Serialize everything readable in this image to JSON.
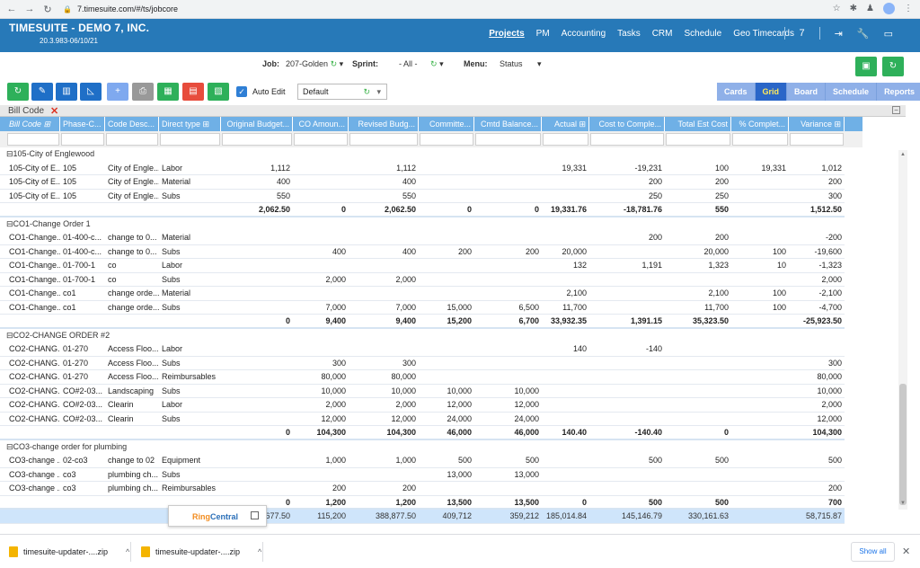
{
  "browser": {
    "url": "7.timesuite.com/#/ts/jobcore"
  },
  "app": {
    "title": "TIMESUITE - DEMO 7, INC.",
    "version": "20.3.983-06/10/21",
    "nav": [
      "Projects",
      "PM",
      "Accounting",
      "Tasks",
      "CRM",
      "Schedule",
      "Geo Timecards"
    ],
    "active_nav": "Projects",
    "badge": "7"
  },
  "filters": {
    "job_label": "Job:",
    "job_value": "207-Golden",
    "sprint_label": "Sprint:",
    "sprint_value": "- All -",
    "menu_label": "Menu:",
    "menu_value": "Status"
  },
  "toolbar": {
    "auto_edit_label": "Auto Edit",
    "layout_value": "Default",
    "view_tabs": [
      "Cards",
      "Grid",
      "Board",
      "Schedule",
      "Reports"
    ],
    "active_view": "Grid"
  },
  "grid": {
    "group_by_label": "Bill Code",
    "columns": [
      "Bill Code",
      "Phase-C...",
      "Code Desc...",
      "Direct type",
      "Original Budget...",
      "CO Amoun...",
      "Revised Budg...",
      "Committe...",
      "Cmtd Balance...",
      "Actual",
      "Cost to Comple...",
      "Total Est Cost",
      "% Complet...",
      "Variance"
    ],
    "groups": [
      {
        "title": "105-City of Englewood",
        "rows": [
          [
            "105-City of E...",
            "105",
            "City of Engle...",
            "Labor",
            "1,112",
            "",
            "1,112",
            "",
            "",
            "19,331",
            "-19,231",
            "100",
            "19,331",
            "1,012"
          ],
          [
            "105-City of E...",
            "105",
            "City of Engle...",
            "Material",
            "400",
            "",
            "400",
            "",
            "",
            "",
            "200",
            "200",
            "",
            "200"
          ],
          [
            "105-City of E...",
            "105",
            "City of Engle...",
            "Subs",
            "550",
            "",
            "550",
            "",
            "",
            "",
            "250",
            "250",
            "",
            "300"
          ]
        ],
        "subtotal": [
          "",
          "",
          "",
          "",
          "2,062.50",
          "0",
          "2,062.50",
          "0",
          "0",
          "19,331.76",
          "-18,781.76",
          "550",
          "",
          "1,512.50"
        ]
      },
      {
        "title": "CO1-Change Order 1",
        "rows": [
          [
            "CO1-Change...",
            "01-400-c...",
            "change to 0...",
            "Material",
            "",
            "",
            "",
            "",
            "",
            "",
            "200",
            "200",
            "",
            "-200"
          ],
          [
            "CO1-Change...",
            "01-400-c...",
            "change to 0...",
            "Subs",
            "",
            "400",
            "400",
            "200",
            "200",
            "20,000",
            "",
            "20,000",
            "100",
            "-19,600"
          ],
          [
            "CO1-Change...",
            "01-700-1",
            "co",
            "Labor",
            "",
            "",
            "",
            "",
            "",
            "132",
            "1,191",
            "1,323",
            "10",
            "-1,323"
          ],
          [
            "CO1-Change...",
            "01-700-1",
            "co",
            "Subs",
            "",
            "2,000",
            "2,000",
            "",
            "",
            "",
            "",
            "",
            "",
            "2,000"
          ],
          [
            "CO1-Change...",
            "co1",
            "change orde...",
            "Material",
            "",
            "",
            "",
            "",
            "",
            "2,100",
            "",
            "2,100",
            "100",
            "-2,100"
          ],
          [
            "CO1-Change...",
            "co1",
            "change orde...",
            "Subs",
            "",
            "7,000",
            "7,000",
            "15,000",
            "6,500",
            "11,700",
            "",
            "11,700",
            "100",
            "-4,700"
          ]
        ],
        "subtotal": [
          "",
          "",
          "",
          "",
          "0",
          "9,400",
          "9,400",
          "15,200",
          "6,700",
          "33,932.35",
          "1,391.15",
          "35,323.50",
          "",
          "-25,923.50"
        ]
      },
      {
        "title": "CO2-CHANGE ORDER #2",
        "rows": [
          [
            "CO2-CHANG...",
            "01-270",
            "Access Floo...",
            "Labor",
            "",
            "",
            "",
            "",
            "",
            "140",
            "-140",
            "",
            "",
            ""
          ],
          [
            "CO2-CHANG...",
            "01-270",
            "Access Floo...",
            "Subs",
            "",
            "300",
            "300",
            "",
            "",
            "",
            "",
            "",
            "",
            "300"
          ],
          [
            "CO2-CHANG...",
            "01-270",
            "Access Floo...",
            "Reimbursables",
            "",
            "80,000",
            "80,000",
            "",
            "",
            "",
            "",
            "",
            "",
            "80,000"
          ],
          [
            "CO2-CHANG...",
            "CO#2-03...",
            "Landscaping",
            "Subs",
            "",
            "10,000",
            "10,000",
            "10,000",
            "10,000",
            "",
            "",
            "",
            "",
            "10,000"
          ],
          [
            "CO2-CHANG...",
            "CO#2-03...",
            "Clearin",
            "Labor",
            "",
            "2,000",
            "2,000",
            "12,000",
            "12,000",
            "",
            "",
            "",
            "",
            "2,000"
          ],
          [
            "CO2-CHANG...",
            "CO#2-03...",
            "Clearin",
            "Subs",
            "",
            "12,000",
            "12,000",
            "24,000",
            "24,000",
            "",
            "",
            "",
            "",
            "12,000"
          ]
        ],
        "subtotal": [
          "",
          "",
          "",
          "",
          "0",
          "104,300",
          "104,300",
          "46,000",
          "46,000",
          "140.40",
          "-140.40",
          "0",
          "",
          "104,300"
        ]
      },
      {
        "title": "CO3-change order for plumbing",
        "rows": [
          [
            "CO3-change ...",
            "02-co3",
            "change to 02",
            "Equipment",
            "",
            "1,000",
            "1,000",
            "500",
            "500",
            "",
            "500",
            "500",
            "",
            "500"
          ],
          [
            "CO3-change ...",
            "co3",
            "plumbing ch...",
            "Subs",
            "",
            "",
            "",
            "13,000",
            "13,000",
            "",
            "",
            "",
            "",
            ""
          ],
          [
            "CO3-change ...",
            "co3",
            "plumbing ch...",
            "Reimbursables",
            "",
            "200",
            "200",
            "",
            "",
            "",
            "",
            "",
            "",
            "200"
          ]
        ],
        "subtotal": [
          "",
          "",
          "",
          "",
          "0",
          "1,200",
          "1,200",
          "13,500",
          "13,500",
          "0",
          "500",
          "500",
          "",
          "700"
        ]
      }
    ],
    "grand_total": [
      "",
      "",
      "",
      "",
      "8,677.50",
      "115,200",
      "388,877.50",
      "409,712",
      "359,212",
      "185,014.84",
      "145,146.79",
      "330,161.63",
      "",
      "58,715.87"
    ]
  },
  "ringcentral": {
    "ring": "Ring",
    "central": "Central"
  },
  "downloads": {
    "items": [
      "timesuite-updater-....zip",
      "timesuite-updater-....zip"
    ],
    "show_all": "Show all"
  }
}
